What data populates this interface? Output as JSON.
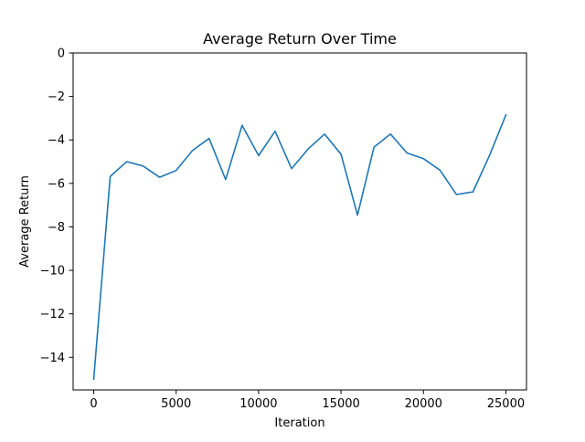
{
  "chart_data": {
    "type": "line",
    "title": "Average Return Over Time",
    "xlabel": "Iteration",
    "ylabel": "Average Return",
    "xlim": [
      -1250,
      26250
    ],
    "ylim": [
      -15.5,
      0
    ],
    "xticks": [
      0,
      5000,
      10000,
      15000,
      20000,
      25000
    ],
    "xtick_labels": [
      "0",
      "5000",
      "10000",
      "15000",
      "20000",
      "25000"
    ],
    "yticks": [
      0,
      -2,
      -4,
      -6,
      -8,
      -10,
      -12,
      -14
    ],
    "ytick_labels": [
      "0",
      "−2",
      "−4",
      "−6",
      "−8",
      "−10",
      "−12",
      "−14"
    ],
    "grid": false,
    "series": [
      {
        "color": "#1f77b4",
        "x": [
          0,
          1000,
          2000,
          3000,
          4000,
          5000,
          6000,
          7000,
          8000,
          9000,
          10000,
          11000,
          12000,
          13000,
          14000,
          15000,
          16000,
          17000,
          18000,
          19000,
          20000,
          21000,
          22000,
          23000,
          24000,
          25000
        ],
        "y": [
          -15.0,
          -5.68,
          -5.0,
          -5.2,
          -5.72,
          -5.4,
          -4.48,
          -3.93,
          -5.82,
          -3.33,
          -4.72,
          -3.6,
          -5.32,
          -4.42,
          -3.73,
          -4.66,
          -7.46,
          -4.33,
          -3.73,
          -4.6,
          -4.86,
          -5.39,
          -6.51,
          -6.39,
          -4.73,
          -2.85
        ]
      }
    ]
  }
}
